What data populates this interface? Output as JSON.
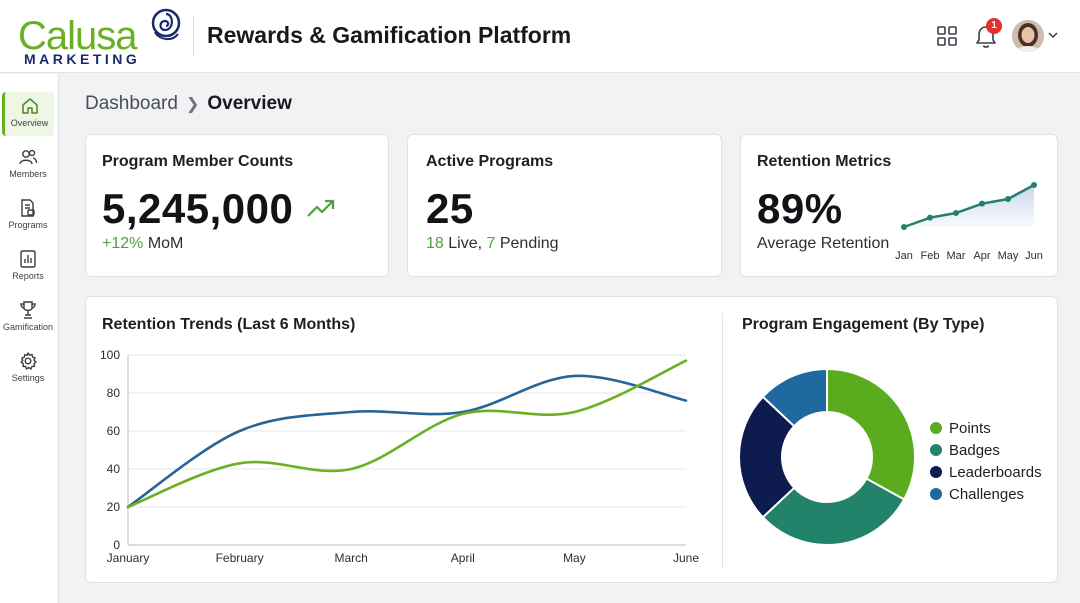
{
  "header": {
    "logo_word": "Calusa",
    "logo_sub": "MARKETING",
    "title": "Rewards & Gamification Platform",
    "notification_count": "1",
    "icons": {
      "apps": "grid-icon",
      "notifications": "bell-icon",
      "menu": "chevron-down-icon"
    }
  },
  "sidebar": {
    "items": [
      {
        "label": "Overview",
        "icon": "home-icon"
      },
      {
        "label": "Members",
        "icon": "users-icon"
      },
      {
        "label": "Programs",
        "icon": "programs-icon"
      },
      {
        "label": "Reports",
        "icon": "reports-icon"
      },
      {
        "label": "Gamification",
        "icon": "trophy-icon"
      },
      {
        "label": "Settings",
        "icon": "gear-icon"
      }
    ]
  },
  "breadcrumb": {
    "root": "Dashboard",
    "current": "Overview"
  },
  "cards": {
    "members": {
      "title": "Program Member Counts",
      "value": "5,245,000",
      "change": "+12%",
      "change_suffix": "MoM"
    },
    "programs": {
      "title": "Active Programs",
      "value": "25",
      "live_count": "18",
      "live_label": "Live,",
      "pending_count": "7",
      "pending_label": "Pending"
    },
    "retention": {
      "title": "Retention Metrics",
      "value": "89%",
      "subtitle": "Average Retention"
    }
  },
  "colors": {
    "brand_green": "#6ab023",
    "brand_navy": "#1b2a6b",
    "teal": "#24806a",
    "blue": "#2a6496"
  },
  "chart_data": [
    {
      "type": "area",
      "categories": [
        "Jan",
        "Feb",
        "Mar",
        "Apr",
        "May",
        "Jun"
      ],
      "values": [
        82,
        84,
        85,
        87,
        88,
        91
      ],
      "title": "",
      "grid": false
    },
    {
      "type": "line",
      "title": "Retention Trends (Last 6 Months)",
      "categories": [
        "January",
        "February",
        "March",
        "April",
        "May",
        "June"
      ],
      "ylim": [
        0,
        100
      ],
      "yticks": [
        0,
        20,
        40,
        60,
        80,
        100
      ],
      "grid": true,
      "series": [
        {
          "color": "#2a6496",
          "values": [
            20,
            60,
            70,
            70,
            89,
            76
          ]
        },
        {
          "color": "#6ab023",
          "values": [
            20,
            43,
            40,
            69,
            70,
            97
          ]
        }
      ]
    },
    {
      "type": "pie",
      "title": "Program Engagement (By Type)",
      "donut": true,
      "legend_position": "right",
      "categories": [
        "Points",
        "Badges",
        "Leaderboards",
        "Challenges"
      ],
      "values": [
        33,
        30,
        24,
        13
      ],
      "colors": [
        "#5aab1e",
        "#23836a",
        "#0d1b4f",
        "#1f68a0"
      ]
    }
  ]
}
